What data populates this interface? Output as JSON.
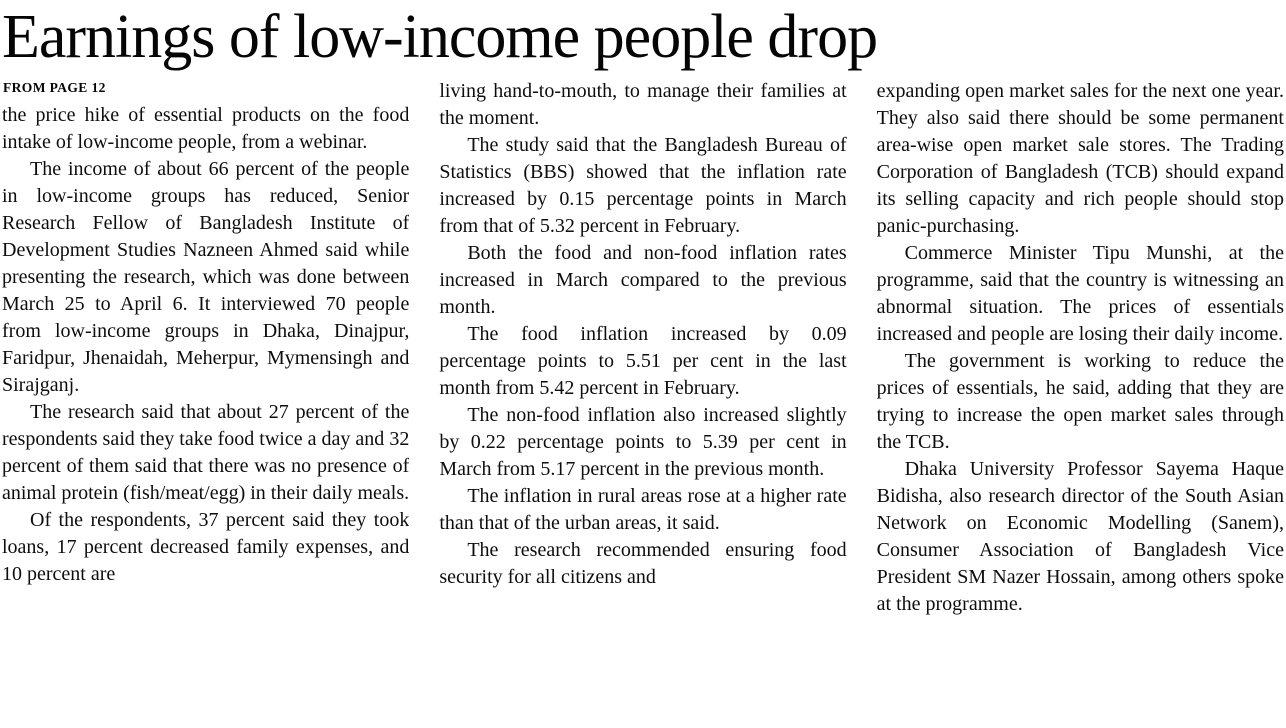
{
  "article": {
    "headline": "Earnings of low-income people drop",
    "kicker": "FROM PAGE 12",
    "columns": [
      {
        "paragraphs": [
          "the price hike of essential products on the food intake of low-income people, from a webinar.",
          "The income of about 66 percent of the people in low-income groups has reduced, Senior Research Fellow of Bangladesh Institute of Development Studies Nazneen Ahmed said while presenting the research, which was done between March 25 to April 6. It interviewed 70 people from low-income groups in Dhaka, Dinajpur, Faridpur, Jhenaidah, Meherpur, Mymensingh and Sirajganj.",
          "The research said that about 27 percent of the respondents said they take food twice a day and 32 percent of them said that there was no presence of animal protein (fish/meat/egg) in their daily meals.",
          "Of the respondents, 37 percent said they took loans, 17 percent decreased family expenses, and 10 percent are"
        ]
      },
      {
        "paragraphs": [
          "living hand-to-mouth, to manage their families at the moment.",
          "The study said that the Bangladesh Bureau of Statistics (BBS) showed that the inflation rate increased by 0.15 percentage points in March from that of 5.32 percent in February.",
          "Both the food and non-food inflation rates increased in March compared to the previous month.",
          "The food inflation increased by 0.09 percentage points to 5.51 per cent in the last month from 5.42 percent in February.",
          "The non-food inflation also increased slightly by 0.22 percentage points to 5.39 per cent in March from 5.17 percent in the previous month.",
          "The inflation in rural areas rose at a higher rate than that of the urban areas, it said.",
          "The research recommended ensuring food security for all citizens and"
        ]
      },
      {
        "paragraphs": [
          "expanding open market sales for the next one year. They also said there should be some permanent area-wise open market sale stores. The Trading Corporation of Bangladesh (TCB) should expand its selling capacity and rich people should stop panic-purchasing.",
          "Commerce Minister Tipu Munshi, at the programme, said that the country is witnessing an abnormal situation. The prices of essentials increased and people are losing their daily income.",
          "The government is working to reduce the prices of essentials, he said, adding that they are trying to increase the open market sales through the TCB.",
          "Dhaka University Professor Sayema Haque Bidisha, also research director of the South Asian Network on Economic Modelling (Sanem), Consumer Association of Bangladesh Vice President SM Nazer Hossain, among others spoke at the programme."
        ]
      }
    ]
  }
}
